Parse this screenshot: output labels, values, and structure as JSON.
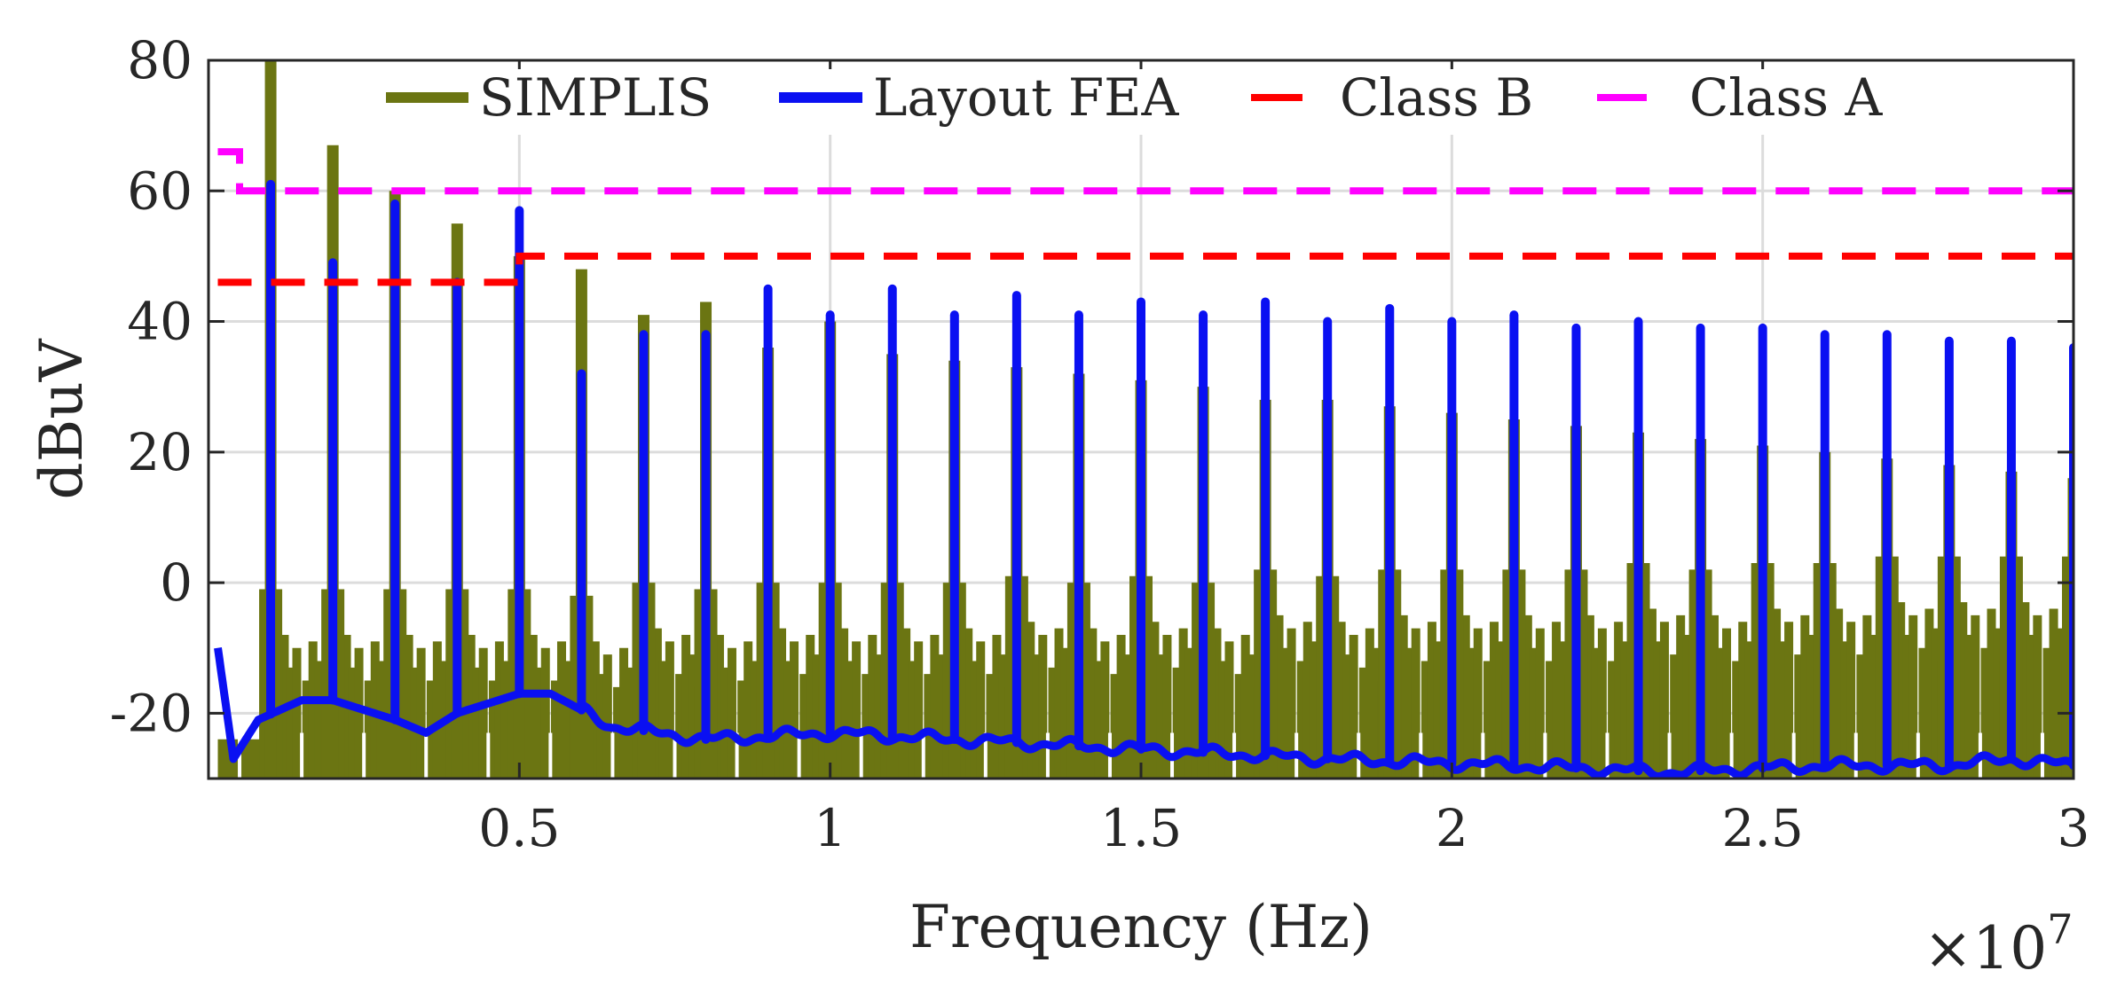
{
  "chart_data": {
    "type": "line",
    "title": "",
    "xlabel": "Frequency (Hz)",
    "ylabel": "dBuV",
    "x_exponent_label": "×10",
    "x_exponent_power": "7",
    "x_scale": 10000000,
    "xlim": [
      150000,
      30000000
    ],
    "ylim": [
      -30,
      80
    ],
    "grid": true,
    "legend_position": "top",
    "x_ticks": [
      {
        "value": 5000000,
        "label": "0.5"
      },
      {
        "value": 10000000,
        "label": "1"
      },
      {
        "value": 15000000,
        "label": "1.5"
      },
      {
        "value": 20000000,
        "label": "2"
      },
      {
        "value": 25000000,
        "label": "2.5"
      },
      {
        "value": 30000000,
        "label": "3"
      }
    ],
    "y_ticks": [
      {
        "value": -20,
        "label": "-20"
      },
      {
        "value": 0,
        "label": "0"
      },
      {
        "value": 20,
        "label": "20"
      },
      {
        "value": 40,
        "label": "40"
      },
      {
        "value": 60,
        "label": "60"
      },
      {
        "value": 80,
        "label": "80"
      }
    ],
    "switching_frequency": 1000000,
    "series": [
      {
        "name": "SIMPLIS",
        "color": "#6b7512",
        "style": "solid",
        "peaks": [
          80,
          67,
          60,
          55,
          50,
          48,
          41,
          43,
          36,
          40,
          35,
          34,
          33,
          32,
          31,
          30,
          28,
          28,
          27,
          26,
          25,
          24,
          23,
          22,
          21,
          20,
          19,
          18,
          17,
          16
        ],
        "secondary_peaks": [
          -1,
          -1,
          -1,
          -1,
          -1,
          -2,
          0,
          -1,
          0,
          0,
          0,
          0,
          1,
          0,
          1,
          0,
          2,
          1,
          2,
          2,
          2,
          2,
          3,
          2,
          3,
          3,
          4,
          4,
          4,
          4
        ],
        "noise_floor": [
          -24,
          -24,
          -24,
          -25,
          -25,
          -25,
          -26,
          -26,
          -26,
          -27,
          -27,
          -27,
          -27,
          -28,
          -28,
          -28,
          -28,
          -28,
          -28,
          -29,
          -29,
          -29,
          -29,
          -29,
          -29,
          -29,
          -29,
          -29,
          -29,
          -29
        ]
      },
      {
        "name": "Layout FEA",
        "color": "#0a10f2",
        "style": "solid",
        "peaks": [
          61,
          49,
          58,
          46,
          57,
          32,
          38,
          38,
          45,
          41,
          45,
          41,
          44,
          41,
          43,
          41,
          43,
          40,
          42,
          40,
          41,
          39,
          40,
          39,
          39,
          38,
          38,
          37,
          37,
          36
        ],
        "baseline": {
          "x": [
            150000,
            400000,
            800000,
            1500000,
            2000000,
            3000000,
            3500000,
            4000000,
            5000000,
            5500000,
            6500000,
            8000000,
            10000000,
            12000000,
            14000000,
            16000000,
            18000000,
            21000000,
            23500000,
            26000000,
            28000000,
            29000000,
            30000000
          ],
          "y": [
            -10,
            -27,
            -21,
            -18,
            -18,
            -21,
            -23,
            -20,
            -17,
            -17,
            -22,
            -24,
            -23,
            -24,
            -25,
            -26,
            -27,
            -28,
            -29,
            -28,
            -28,
            -27,
            -28
          ]
        }
      },
      {
        "name": "Class B",
        "color": "#ff0000",
        "style": "dashed",
        "x": [
          150000,
          500000,
          500000,
          5000000,
          5000000,
          30000000
        ],
        "y": [
          46,
          46,
          46,
          46,
          50,
          50
        ]
      },
      {
        "name": "Class A",
        "color": "#ff00ff",
        "style": "dashed",
        "x": [
          150000,
          500000,
          500000,
          30000000
        ],
        "y": [
          66,
          66,
          60,
          60
        ]
      }
    ]
  }
}
